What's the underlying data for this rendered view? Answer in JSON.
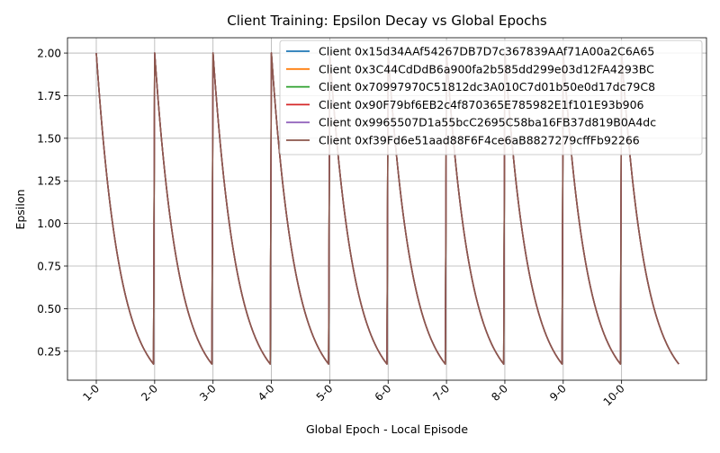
{
  "chart_data": {
    "type": "line",
    "title": "Client Training: Epsilon Decay vs Global Epochs",
    "xlabel": "Global Epoch - Local Episode",
    "ylabel": "Epsilon",
    "x_tick_labels": [
      "1-0",
      "2-0",
      "3-0",
      "4-0",
      "5-0",
      "6-0",
      "7-0",
      "8-0",
      "9-0",
      "10-0"
    ],
    "episodes_per_epoch": 50,
    "num_epochs": 10,
    "epsilon_start": 2.0,
    "epsilon_end": 0.175,
    "ylim": [
      0.08,
      2.09
    ],
    "y_ticks": [
      0.25,
      0.5,
      0.75,
      1.0,
      1.25,
      1.5,
      1.75,
      2.0
    ],
    "y_tick_labels": [
      "0.25",
      "0.50",
      "0.75",
      "1.00",
      "1.25",
      "1.50",
      "1.75",
      "2.00"
    ],
    "grid": true,
    "legend_position": "top-right",
    "series": [
      {
        "name": "Client 0x15d34AAf54267DB7D7c367839AAf71A00a2C6A65",
        "color": "#1f77b4"
      },
      {
        "name": "Client 0x3C44CdDdB6a900fa2b585dd299e03d12FA4293BC",
        "color": "#ff7f0e"
      },
      {
        "name": "Client 0x70997970C51812dc3A010C7d01b50e0d17dc79C8",
        "color": "#2ca02c"
      },
      {
        "name": "Client 0x90F79bf6EB2c4f870365E785982E1f101E93b906",
        "color": "#d62728"
      },
      {
        "name": "Client 0x9965507D1a55bcC2695C58ba16FB37d819B0A4dc",
        "color": "#9467bd"
      },
      {
        "name": "Client 0xf39Fd6e51aad88F6F4ce6aB8827279cffFb92266",
        "color": "#8c564b"
      }
    ]
  }
}
